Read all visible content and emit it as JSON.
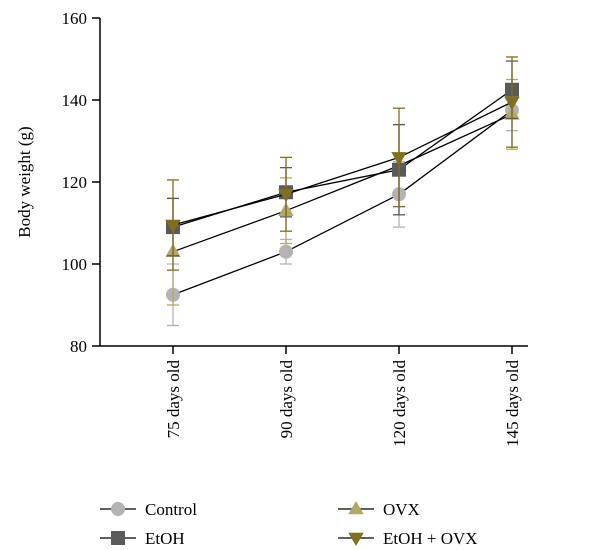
{
  "chart_data": {
    "type": "line",
    "title": "",
    "xlabel": "",
    "ylabel": "Body weight (g)",
    "ylim": [
      80,
      160
    ],
    "yticks": [
      80,
      100,
      120,
      140,
      160
    ],
    "categories": [
      "75 days old",
      "90 days old",
      "120 days old",
      "145 days old"
    ],
    "grid": false,
    "legend_position": "bottom",
    "series": [
      {
        "name": "Control",
        "marker": "circle",
        "color": "#b3b3b3",
        "values": [
          92.5,
          103,
          117,
          137.5
        ],
        "errors": [
          7.5,
          3,
          8,
          5
        ]
      },
      {
        "name": "OVX",
        "marker": "triangle-up",
        "color": "#b3a86a",
        "values": [
          103,
          113,
          124,
          136.5
        ],
        "errors": [
          13,
          8,
          10,
          8.5
        ]
      },
      {
        "name": "EtOH",
        "marker": "square",
        "color": "#5a5a5a",
        "values": [
          109,
          117.5,
          123,
          142.5
        ],
        "errors": [
          7,
          6,
          11,
          7
        ]
      },
      {
        "name": "EtOH + OVX",
        "marker": "triangle-down",
        "color": "#7f6f1f",
        "values": [
          109.5,
          117,
          126,
          139.5
        ],
        "errors": [
          11,
          9,
          12,
          11
        ]
      }
    ]
  }
}
